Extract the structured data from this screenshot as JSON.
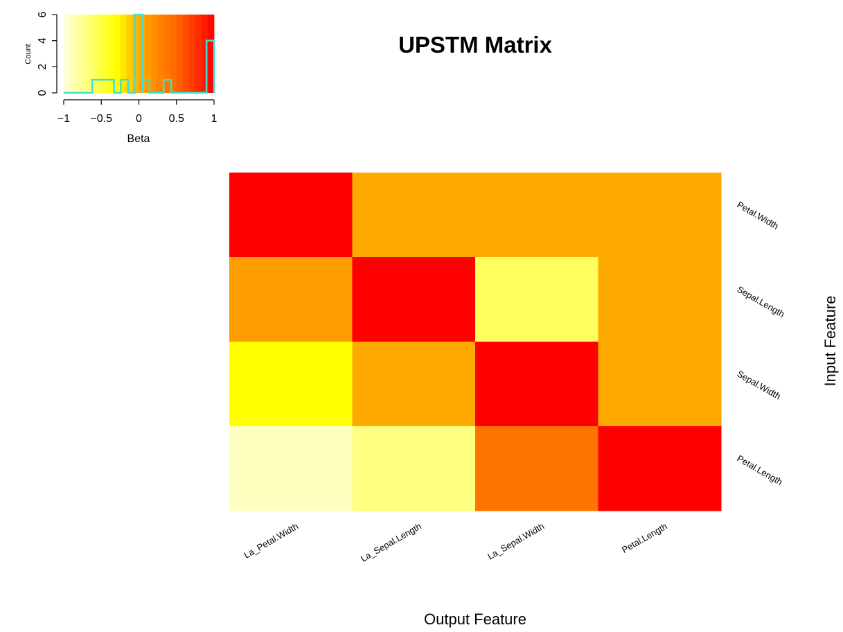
{
  "chart_data": [
    {
      "type": "heatmap",
      "title": "UPSTM Matrix",
      "xlabel": "Output Feature",
      "ylabel": "Input Feature",
      "x_categories": [
        "La_Petal.Width",
        "La_Sepal.Length",
        "La_Sepal.Width",
        "Petal.Length"
      ],
      "y_categories": [
        "Petal.Width",
        "Sepal.Length",
        "Sepal.Width",
        "Petal.Length"
      ],
      "values": [
        [
          1.0,
          0.0,
          0.0,
          0.0
        ],
        [
          0.1,
          1.0,
          -0.6,
          0.0
        ],
        [
          -0.3,
          0.0,
          1.0,
          0.0
        ],
        [
          -0.9,
          -0.7,
          0.4,
          1.0
        ]
      ],
      "value_range": [
        -1,
        1
      ],
      "colormap": "heat (white → yellow → orange → red)"
    },
    {
      "type": "line",
      "subtype": "histogram (color key)",
      "xlabel": "Beta",
      "ylabel": "Count",
      "xlim": [
        -1,
        1
      ],
      "ylim": [
        0,
        6
      ],
      "x_ticks": [
        "−1",
        "−0.5",
        "0",
        "0.5",
        "1"
      ],
      "y_ticks": [
        "0",
        "2",
        "4",
        "6"
      ],
      "bins": [
        {
          "from": -0.62,
          "to": -0.33,
          "count": 1
        },
        {
          "from": -0.24,
          "to": -0.14,
          "count": 1
        },
        {
          "from": -0.05,
          "to": 0.05,
          "count": 6
        },
        {
          "from": 0.05,
          "to": 0.14,
          "count": 1
        },
        {
          "from": 0.33,
          "to": 0.43,
          "count": 1
        },
        {
          "from": 0.9,
          "to": 1.0,
          "count": 4
        }
      ],
      "line_color": "#40e0d0"
    }
  ]
}
